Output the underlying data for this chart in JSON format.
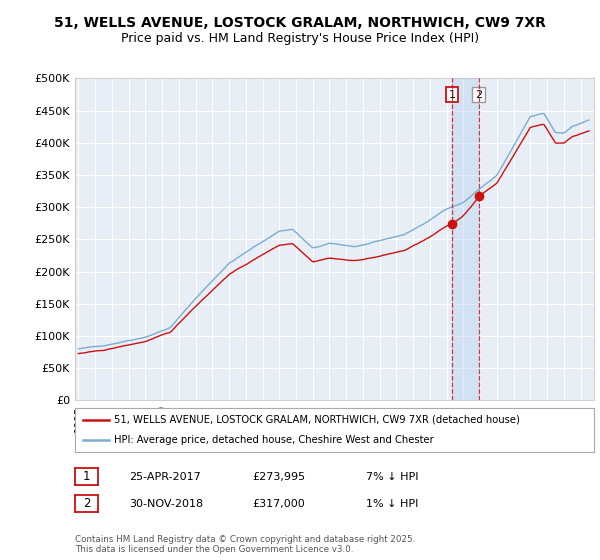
{
  "title": "51, WELLS AVENUE, LOSTOCK GRALAM, NORTHWICH, CW9 7XR",
  "subtitle": "Price paid vs. HM Land Registry's House Price Index (HPI)",
  "ytick_values": [
    0,
    50000,
    100000,
    150000,
    200000,
    250000,
    300000,
    350000,
    400000,
    450000,
    500000
  ],
  "ylim": [
    0,
    500000
  ],
  "xlim_start": 1994.8,
  "xlim_end": 2025.8,
  "background_color": "#ffffff",
  "plot_bg_color": "#e8eef5",
  "grid_color": "#ffffff",
  "hpi_line_color": "#7aadcf",
  "price_line_color": "#cc1111",
  "sale1_date": 2017.32,
  "sale1_price": 273995,
  "sale2_date": 2018.92,
  "sale2_price": 317000,
  "legend_label1": "51, WELLS AVENUE, LOSTOCK GRALAM, NORTHWICH, CW9 7XR (detached house)",
  "legend_label2": "HPI: Average price, detached house, Cheshire West and Chester",
  "table_row1": [
    "1",
    "25-APR-2017",
    "£273,995",
    "7% ↓ HPI"
  ],
  "table_row2": [
    "2",
    "30-NOV-2018",
    "£317,000",
    "1% ↓ HPI"
  ],
  "copyright_text": "Contains HM Land Registry data © Crown copyright and database right 2025.\nThis data is licensed under the Open Government Licence v3.0.",
  "title_fontsize": 10,
  "subtitle_fontsize": 9,
  "tick_fontsize": 8
}
